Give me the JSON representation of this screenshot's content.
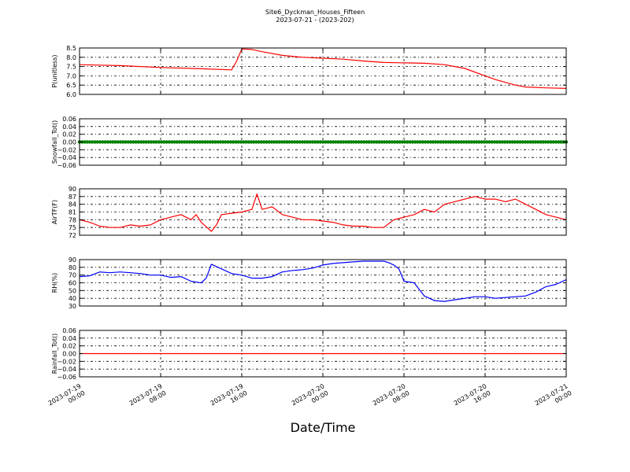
{
  "figure": {
    "title": "Site6_Dyckman_Houses_Fifteen",
    "subtitle": "2023-07-21 - (2023-202)",
    "xlabel": "Date/Time"
  },
  "chart_data": [
    {
      "type": "line",
      "ylabel": "P(unitless)",
      "color": "#ff0000",
      "ylim": [
        6.0,
        8.5
      ],
      "yticks": [
        "6.0",
        "6.5",
        "7.0",
        "7.5",
        "8.0",
        "8.5"
      ],
      "ytick_values": [
        6.0,
        6.5,
        7.0,
        7.5,
        8.0,
        8.5
      ],
      "grid": true,
      "x_is_hours_from_start": true,
      "series": [
        {
          "x": [
            0,
            4,
            8,
            12,
            15,
            15.5,
            16,
            17,
            18,
            20,
            22,
            24,
            26,
            28,
            30,
            32,
            34,
            36,
            37,
            38,
            40,
            41,
            42,
            43,
            44,
            46,
            48
          ],
          "y": [
            7.6,
            7.55,
            7.45,
            7.38,
            7.32,
            7.8,
            8.45,
            8.42,
            8.3,
            8.1,
            8.0,
            7.95,
            7.9,
            7.8,
            7.72,
            7.7,
            7.68,
            7.6,
            7.5,
            7.4,
            7.0,
            6.8,
            6.65,
            6.5,
            6.4,
            6.35,
            6.32
          ]
        }
      ]
    },
    {
      "type": "scatter",
      "ylabel": "Snowfall_Tot()",
      "color": "#008000",
      "ylim": [
        -0.06,
        0.06
      ],
      "yticks": [
        "0.06",
        "0.04",
        "0.02",
        "0.00",
        "−0.02",
        "−0.04",
        "−0.06"
      ],
      "ytick_values": [
        0.06,
        0.04,
        0.02,
        0.0,
        -0.02,
        -0.04,
        -0.06
      ],
      "grid": true,
      "constant_value": 0.0
    },
    {
      "type": "line",
      "ylabel": "AirTF(F)",
      "color": "#ff0000",
      "ylim": [
        72,
        90
      ],
      "yticks": [
        "90",
        "87",
        "84",
        "81",
        "78",
        "75",
        "72"
      ],
      "ytick_values": [
        90,
        87,
        84,
        81,
        78,
        75,
        72
      ],
      "grid": true,
      "series": [
        {
          "x": [
            0,
            1,
            2,
            3,
            4,
            5,
            6,
            7,
            8,
            9,
            10,
            11,
            11.5,
            12,
            13,
            13.5,
            14,
            15,
            16,
            17,
            17.5,
            18,
            19,
            20,
            21,
            22,
            23,
            24,
            25,
            26,
            27,
            28,
            29,
            30,
            31,
            32,
            33,
            34,
            35,
            36,
            37,
            38,
            39,
            40,
            41,
            42,
            43,
            44,
            45,
            46,
            47,
            48
          ],
          "y": [
            78,
            77,
            75.5,
            75,
            75,
            76,
            75.5,
            76,
            78,
            79,
            80,
            78,
            80,
            77,
            73.5,
            76,
            80,
            80.5,
            81,
            82,
            88,
            82,
            83,
            80,
            79,
            78,
            78,
            77.5,
            77,
            76,
            75.5,
            75.5,
            75,
            75,
            78,
            79,
            80,
            82,
            81,
            84,
            85,
            86,
            87,
            86,
            86,
            85,
            86,
            84,
            82,
            80,
            79,
            78
          ]
        }
      ]
    },
    {
      "type": "line",
      "ylabel": "RH(%)",
      "color": "#0000ff",
      "ylim": [
        30,
        90
      ],
      "yticks": [
        "90",
        "80",
        "70",
        "60",
        "50",
        "40",
        "30"
      ],
      "ytick_values": [
        90,
        80,
        70,
        60,
        50,
        40,
        30
      ],
      "grid": true,
      "series": [
        {
          "x": [
            0,
            1,
            2,
            3,
            4,
            5,
            6,
            7,
            8,
            9,
            10,
            11,
            12,
            12.5,
            13,
            14,
            15,
            16,
            17,
            18,
            19,
            20,
            21,
            22,
            23,
            24,
            25,
            26,
            27,
            28,
            29,
            30,
            30.5,
            31,
            31.5,
            32,
            33,
            34,
            35,
            36,
            37,
            38,
            39,
            40,
            41,
            42,
            43,
            44,
            45,
            46,
            47,
            48
          ],
          "y": [
            68,
            69,
            74,
            73,
            74,
            73,
            72,
            70,
            70,
            67,
            68,
            62,
            60,
            66,
            84,
            78,
            72,
            70,
            66,
            66,
            68,
            74,
            76,
            77,
            79,
            83,
            85,
            86,
            87,
            88,
            88,
            88,
            86,
            83,
            78,
            62,
            60,
            43,
            37,
            36,
            38,
            40,
            42,
            42,
            40,
            41,
            42,
            43,
            48,
            55,
            58,
            64
          ]
        }
      ]
    },
    {
      "type": "line",
      "ylabel": "Rainfall_Tot()",
      "color": "#ff0000",
      "ylim": [
        -0.06,
        0.06
      ],
      "yticks": [
        "0.06",
        "0.04",
        "0.02",
        "0.00",
        "−0.02",
        "−0.04",
        "−0.06"
      ],
      "ytick_values": [
        0.06,
        0.04,
        0.02,
        0.0,
        -0.02,
        -0.04,
        -0.06
      ],
      "grid": true,
      "series": [
        {
          "x": [
            0,
            48
          ],
          "y": [
            0.0,
            0.0
          ]
        }
      ]
    }
  ],
  "xaxis": {
    "ticks": [
      {
        "x": 0,
        "label1": "2023-07-19",
        "label2": "00:00"
      },
      {
        "x": 8,
        "label1": "2023-07-19",
        "label2": "08:00"
      },
      {
        "x": 16,
        "label1": "2023-07-19",
        "label2": "16:00"
      },
      {
        "x": 24,
        "label1": "2023-07-20",
        "label2": "00:00"
      },
      {
        "x": 32,
        "label1": "2023-07-20",
        "label2": "08:00"
      },
      {
        "x": 40,
        "label1": "2023-07-20",
        "label2": "16:00"
      },
      {
        "x": 48,
        "label1": "2023-07-21",
        "label2": "00:00"
      }
    ],
    "xlim": [
      0,
      48
    ]
  }
}
